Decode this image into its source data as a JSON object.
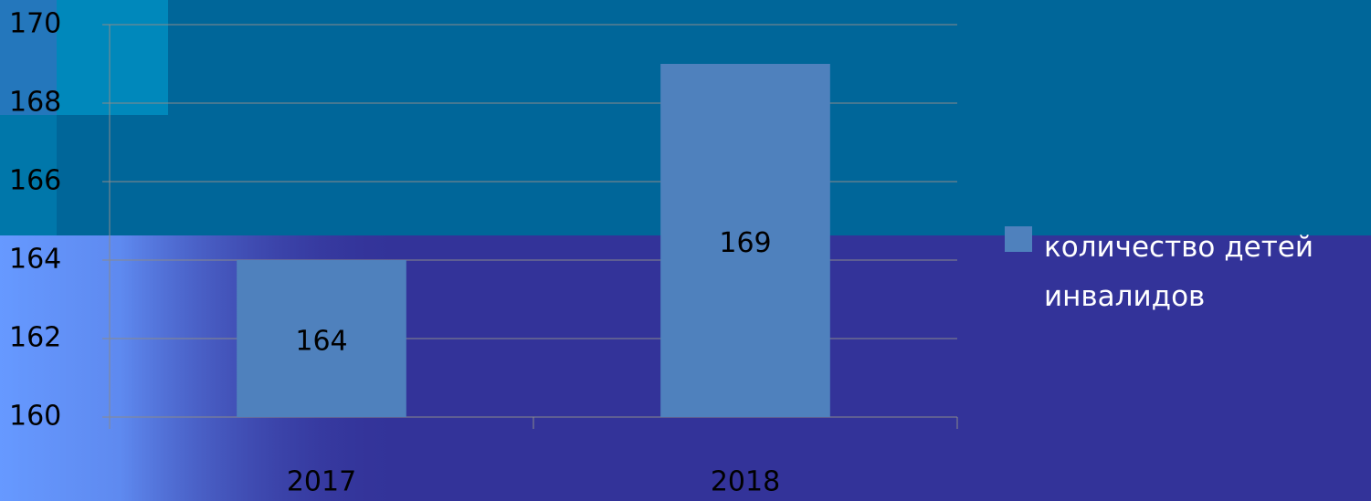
{
  "chart_data": {
    "type": "bar",
    "categories": [
      "2017",
      "2018"
    ],
    "series": [
      {
        "name": "количество детей инвалидов",
        "color": "#4f81bd",
        "values": [
          164,
          169
        ]
      }
    ],
    "ylim": [
      160,
      170
    ],
    "yticks": [
      160,
      162,
      164,
      166,
      168,
      170
    ],
    "grid": true,
    "legend": "right"
  }
}
